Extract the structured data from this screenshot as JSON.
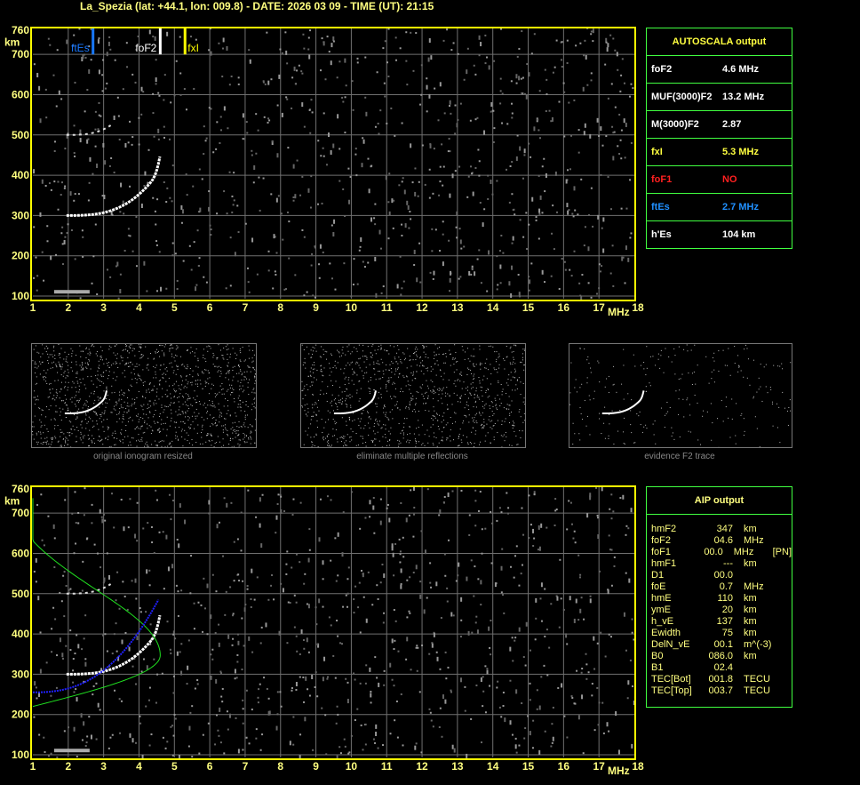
{
  "header": {
    "title": "La_Spezia (lat: +44.1, lon: 009.8) - DATE: 2026 03 09 - TIME (UT): 21:15"
  },
  "axes": {
    "y_ticks": [
      100,
      200,
      300,
      400,
      500,
      600,
      700,
      760
    ],
    "y_unit": "km",
    "x_ticks": [
      1,
      2,
      3,
      4,
      5,
      6,
      7,
      8,
      9,
      10,
      11,
      12,
      13,
      14,
      15,
      16,
      17,
      18
    ],
    "x_unit": "MHz"
  },
  "markers": [
    {
      "label": "ftEs",
      "freq": 2.7,
      "color": "#1878ff"
    },
    {
      "label": "foF2",
      "freq": 4.6,
      "color": "#ffffff"
    },
    {
      "label": "fxI",
      "freq": 5.3,
      "color": "#ffff00"
    }
  ],
  "autoscala": {
    "title": "AUTOSCALA output",
    "rows": [
      {
        "label": "foF2",
        "value": "4.6 MHz",
        "color": "#ffffff"
      },
      {
        "label": "MUF(3000)F2",
        "value": "13.2 MHz",
        "color": "#ffffff"
      },
      {
        "label": "M(3000)F2",
        "value": "2.87",
        "color": "#ffffff"
      },
      {
        "label": "fxI",
        "value": "5.3 MHz",
        "color": "#ffff40"
      },
      {
        "label": "foF1",
        "value": "NO",
        "color": "#ff2020"
      },
      {
        "label": "ftEs",
        "value": "2.7 MHz",
        "color": "#2090ff"
      },
      {
        "label": "h'Es",
        "value": "104    km",
        "color": "#ffffff"
      }
    ]
  },
  "thumbnails": [
    {
      "caption": "original ionogram resized"
    },
    {
      "caption": "eliminate multiple reflections"
    },
    {
      "caption": "evidence F2 trace"
    }
  ],
  "aip": {
    "title": "AIP output",
    "rows": [
      [
        "hmF2",
        "347",
        "km",
        ""
      ],
      [
        "foF2",
        "04.6",
        "MHz",
        ""
      ],
      [
        "foF1",
        "00.0",
        "MHz",
        "[PN]"
      ],
      [
        "hmF1",
        "---",
        "km",
        ""
      ],
      [
        "D1",
        "00.0",
        "",
        ""
      ],
      [
        "foE",
        "0.7",
        "MHz",
        ""
      ],
      [
        "hmE",
        "110",
        "km",
        ""
      ],
      [
        "ymE",
        "20",
        "km",
        ""
      ],
      [
        "h_vE",
        "137",
        "km",
        ""
      ],
      [
        "Ewidth",
        "75",
        "km",
        ""
      ],
      [
        "DelN_vE",
        "00.1",
        "m^(-3)",
        ""
      ],
      [
        "B0",
        "086.0",
        "km",
        ""
      ],
      [
        "B1",
        "02.4",
        "",
        ""
      ],
      [
        "TEC[Bot]",
        "001.8",
        "TECU",
        ""
      ],
      [
        "TEC[Top]",
        "003.7",
        "TECU",
        ""
      ]
    ]
  },
  "colors": {
    "grid": "#707070",
    "frame": "#ffff00",
    "trace": "#ffffff",
    "profile": "#20e020",
    "fit": "#2020ff"
  }
}
